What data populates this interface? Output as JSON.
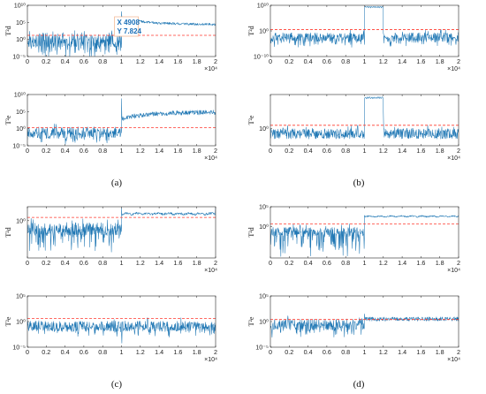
{
  "colors": {
    "signal": "#1f77b4",
    "threshold": "#ff3a2f",
    "axis": "#262626"
  },
  "chart_data": [
    {
      "type": "line",
      "panel": "a",
      "position": "top",
      "ylabel": "T²d",
      "x_ticks": [
        "0",
        "0.2",
        "0.4",
        "0.6",
        "0.8",
        "1",
        "1.2",
        "1.4",
        "1.6",
        "1.8",
        "2"
      ],
      "xlim": [
        0,
        2
      ],
      "x_multiplier": "×10⁴",
      "y_scale": "log",
      "ylim_exp": [
        -5,
        10
      ],
      "y_tick_exps": [
        -5,
        0,
        5,
        10
      ],
      "y_ticks": [
        "10⁻⁵",
        "10⁰",
        "10⁵",
        "10¹⁰"
      ],
      "threshold": 1.2,
      "threshold_xlim": [
        0,
        2
      ],
      "segments": [
        {
          "x": [
            0,
            1
          ],
          "level": -0.3,
          "amp": 4.2,
          "drift": 0,
          "trough_amp": 2.5
        },
        {
          "x": [
            1,
            2
          ],
          "level": 6.4,
          "amp": 0.7,
          "drift": -2.0,
          "spike": 8.2
        }
      ],
      "datatip": {
        "x": "4908",
        "y": "7.824",
        "at": [
          0.4908,
          0.89
        ]
      },
      "data_note": "values depicted as seeded noise around estimated levels"
    },
    {
      "type": "line",
      "panel": "a",
      "position": "bottom",
      "ylabel": "T²e",
      "x_ticks": [
        "0",
        "0.2",
        "0.4",
        "0.6",
        "0.8",
        "1",
        "1.2",
        "1.4",
        "1.6",
        "1.8",
        "2"
      ],
      "xlim": [
        0,
        2
      ],
      "x_multiplier": "×10⁴",
      "y_scale": "log",
      "ylim_exp": [
        -5,
        10
      ],
      "y_tick_exps": [
        -5,
        0,
        5,
        10
      ],
      "y_ticks": [
        "10⁻⁵",
        "10⁰",
        "10⁵",
        "10¹⁰"
      ],
      "threshold": 0.3,
      "threshold_xlim": [
        0,
        2
      ],
      "segments": [
        {
          "x": [
            0,
            1
          ],
          "level": -1.2,
          "amp": 3.4,
          "drift": 0,
          "trough_amp": 1.2
        },
        {
          "x": [
            1,
            2
          ],
          "level": 2.8,
          "amp": 1.4,
          "drift": 2.0,
          "spike": 8.8
        }
      ]
    },
    {
      "type": "line",
      "panel": "b",
      "position": "top",
      "ylabel": "T²d",
      "x_ticks": [
        "0",
        "0.2",
        "0.4",
        "0.6",
        "0.8",
        "1",
        "1.2",
        "1.4",
        "1.6",
        "1.8",
        "2"
      ],
      "xlim": [
        0,
        2
      ],
      "x_multiplier": "×10⁴",
      "y_scale": "log",
      "ylim_exp": [
        -10,
        10
      ],
      "y_tick_exps": [
        -10,
        0,
        10
      ],
      "y_ticks": [
        "10⁻¹⁰",
        "10⁰",
        "10¹⁰"
      ],
      "threshold": 0.5,
      "threshold_xlim": [
        0,
        2
      ],
      "segments": [
        {
          "x": [
            0,
            1
          ],
          "level": -2.5,
          "amp": 3.6,
          "drift": 0,
          "trough_amp": 1.5
        },
        {
          "x": [
            1,
            1.2
          ],
          "level": 9.0,
          "amp": 0.3,
          "drift": 0,
          "wavy": 0.5
        },
        {
          "x": [
            1.2,
            2
          ],
          "level": -2.5,
          "amp": 3.6,
          "drift": 0,
          "trough_amp": 1.5
        }
      ]
    },
    {
      "type": "line",
      "panel": "b",
      "position": "bottom",
      "ylabel": "T²e",
      "x_ticks": [
        "0",
        "0.2",
        "0.4",
        "0.6",
        "0.8",
        "1",
        "1.2",
        "1.4",
        "1.6",
        "1.8",
        "2"
      ],
      "xlim": [
        0,
        2
      ],
      "x_multiplier": "×10⁴",
      "y_scale": "log",
      "ylim_exp": [
        -4,
        8
      ],
      "y_tick_exps": [
        0
      ],
      "y_ticks": [
        "10⁰"
      ],
      "threshold": 0.8,
      "threshold_xlim": [
        0,
        2
      ],
      "segments": [
        {
          "x": [
            0,
            1
          ],
          "level": -1.2,
          "amp": 2.4,
          "drift": 0
        },
        {
          "x": [
            1,
            1.2
          ],
          "level": 7.0,
          "amp": 0.2,
          "drift": 0,
          "wavy": 0.4
        },
        {
          "x": [
            1.2,
            2
          ],
          "level": -1.2,
          "amp": 2.4,
          "drift": 0,
          "spike": 4.0
        }
      ]
    },
    {
      "type": "line",
      "panel": "c",
      "position": "top",
      "ylabel": "T²d",
      "x_ticks": [
        "0",
        "0.2",
        "0.4",
        "0.6",
        "0.8",
        "1",
        "1.2",
        "1.4",
        "1.6",
        "1.8",
        "2"
      ],
      "xlim": [
        0,
        2
      ],
      "x_multiplier": "×10⁴",
      "y_scale": "log",
      "ylim_exp": [
        -8,
        3
      ],
      "y_tick_exps": [
        0
      ],
      "y_ticks": [
        "10⁰"
      ],
      "threshold": 0.7,
      "threshold_xlim": [
        0,
        2
      ],
      "segments": [
        {
          "x": [
            0,
            1
          ],
          "level": -1.8,
          "amp": 2.8,
          "drift": 0,
          "trough_amp": 2.8
        },
        {
          "x": [
            1,
            2
          ],
          "level": 1.3,
          "amp": 0.5,
          "drift": 0,
          "wavy": 0.3,
          "spike": 2.7
        }
      ]
    },
    {
      "type": "line",
      "panel": "c",
      "position": "bottom",
      "ylabel": "T²e",
      "x_ticks": [
        "0",
        "0.2",
        "0.4",
        "0.6",
        "0.8",
        "1",
        "1.2",
        "1.4",
        "1.6",
        "1.8",
        "2"
      ],
      "xlim": [
        0,
        2
      ],
      "x_multiplier": "×10⁴",
      "y_scale": "log",
      "ylim_exp": [
        -5,
        5
      ],
      "y_tick_exps": [
        -5,
        0,
        5
      ],
      "y_ticks": [
        "10⁻⁵",
        "10⁰",
        "10⁵"
      ],
      "threshold": 0.6,
      "threshold_xlim": [
        0,
        2
      ],
      "segments": [
        {
          "x": [
            0,
            1
          ],
          "level": -0.9,
          "amp": 2.0,
          "drift": 0,
          "trough_amp": 0.8
        },
        {
          "x": [
            1,
            2
          ],
          "level": -0.9,
          "amp": 2.0,
          "drift": 0,
          "trough_amp": 1.0,
          "dip": -4.2
        }
      ]
    },
    {
      "type": "line",
      "panel": "d",
      "position": "top",
      "ylabel": "T²d",
      "x_ticks": [
        "0",
        "0.2",
        "0.4",
        "0.6",
        "0.8",
        "1",
        "1.2",
        "1.4",
        "1.6",
        "1.8",
        "2"
      ],
      "xlim": [
        0,
        2
      ],
      "x_multiplier": "×10⁴",
      "y_scale": "log",
      "ylim_exp": [
        -8,
        5
      ],
      "y_tick_exps": [
        0,
        5
      ],
      "y_ticks": [
        "10⁰",
        "10⁵"
      ],
      "threshold": 0.6,
      "threshold_xlim": [
        0,
        2
      ],
      "segments": [
        {
          "x": [
            0,
            1
          ],
          "level": -1.5,
          "amp": 2.6,
          "drift": 0,
          "trough_amp": 3.5
        },
        {
          "x": [
            1,
            2
          ],
          "level": 2.4,
          "amp": 0.35,
          "drift": 0,
          "wavy": 0.25,
          "spike": 2.8
        }
      ]
    },
    {
      "type": "line",
      "panel": "d",
      "position": "bottom",
      "ylabel": "T²e",
      "x_ticks": [
        "0",
        "0.2",
        "0.4",
        "0.6",
        "0.8",
        "1",
        "1.2",
        "1.4",
        "1.6",
        "1.8",
        "2"
      ],
      "xlim": [
        0,
        2
      ],
      "x_multiplier": "×10⁴",
      "y_scale": "log",
      "ylim_exp": [
        -5,
        5
      ],
      "y_tick_exps": [
        -5,
        0,
        5
      ],
      "y_ticks": [
        "10⁻⁵",
        "10⁰",
        "10⁵"
      ],
      "threshold": 0.4,
      "threshold_xlim": [
        0,
        2
      ],
      "segments": [
        {
          "x": [
            0,
            1
          ],
          "level": -0.6,
          "amp": 2.1,
          "drift": 0,
          "trough_amp": 1.2
        },
        {
          "x": [
            1,
            2
          ],
          "level": 0.5,
          "amp": 0.8,
          "drift": 0,
          "spike": 1.5
        }
      ]
    }
  ],
  "captions": {
    "a": "(a)",
    "b": "(b)",
    "c": "(c)",
    "d": "(d)"
  }
}
